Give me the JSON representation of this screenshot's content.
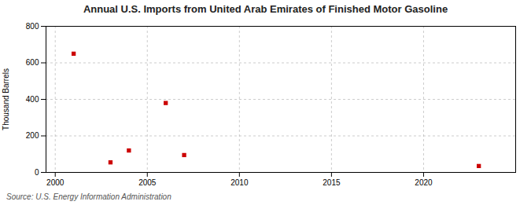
{
  "chart_data": {
    "type": "scatter",
    "title": "Annual U.S. Imports from United Arab Emirates of Finished Motor Gasoline",
    "ylabel": "Thousand Barrels",
    "annotation": "Source: U.S. Energy Information Administration",
    "x": [
      2001,
      2003,
      2004,
      2006,
      2007,
      2023
    ],
    "values": [
      650,
      55,
      120,
      380,
      95,
      35
    ],
    "color": "#cc0000",
    "marker": "square",
    "xlim": [
      1999.5,
      2025
    ],
    "xticks": [
      2000,
      2005,
      2010,
      2015,
      2020
    ],
    "ylim": [
      0,
      800
    ],
    "yticks": [
      0,
      200,
      400,
      600,
      800
    ],
    "grid": true
  }
}
